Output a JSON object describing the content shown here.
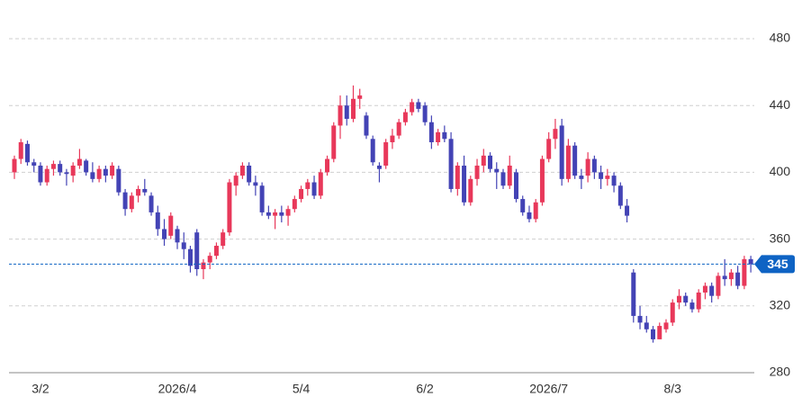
{
  "chart_data": {
    "type": "candlestick",
    "categories": [
      null,
      null,
      null,
      null,
      "3/2",
      null,
      null,
      null,
      null,
      null,
      null,
      null,
      null,
      null,
      null,
      null,
      null,
      null,
      null,
      null,
      null,
      null,
      null,
      null,
      null,
      "2026/4",
      null,
      null,
      null,
      null,
      null,
      null,
      null,
      null,
      null,
      null,
      null,
      null,
      null,
      null,
      null,
      null,
      null,
      null,
      "5/4",
      null,
      null,
      null,
      null,
      null,
      null,
      null,
      null,
      null,
      null,
      null,
      null,
      null,
      null,
      null,
      null,
      null,
      null,
      "6/2",
      null,
      null,
      null,
      null,
      null,
      null,
      null,
      null,
      null,
      null,
      null,
      null,
      null,
      null,
      null,
      null,
      null,
      null,
      "2026/7",
      null,
      null,
      null,
      null,
      null,
      null,
      null,
      null,
      null,
      null,
      null,
      null,
      null,
      null,
      null,
      null,
      null,
      null,
      "8/3",
      null,
      null,
      null,
      null,
      null,
      null,
      null,
      null,
      null,
      null,
      null,
      null
    ],
    "open": [
      400,
      408,
      417,
      406,
      404,
      394,
      402,
      405,
      400,
      398,
      404,
      407,
      400,
      396,
      402,
      398,
      402,
      388,
      378,
      386,
      390,
      386,
      376,
      366,
      362,
      366,
      358,
      354,
      364,
      342,
      346,
      350,
      356,
      364,
      392,
      398,
      404,
      394,
      392,
      376,
      374,
      376,
      374,
      378,
      384,
      390,
      394,
      386,
      400,
      408,
      428,
      440,
      432,
      444,
      434,
      420,
      404,
      404,
      418,
      422,
      430,
      436,
      442,
      440,
      430,
      418,
      424,
      420,
      390,
      404,
      382,
      396,
      404,
      410,
      402,
      400,
      392,
      400,
      384,
      376,
      372,
      382,
      408,
      420,
      428,
      396,
      416,
      398,
      398,
      408,
      400,
      396,
      398,
      392,
      380,
      340,
      314,
      310,
      306,
      300,
      306,
      310,
      322,
      326,
      322,
      318,
      328,
      332,
      326,
      338,
      336,
      340,
      332,
      348
    ],
    "high": [
      410,
      420,
      419,
      408,
      406,
      404,
      407,
      407,
      402,
      406,
      414,
      408,
      406,
      404,
      404,
      406,
      404,
      390,
      388,
      392,
      396,
      388,
      380,
      372,
      376,
      368,
      364,
      356,
      366,
      348,
      352,
      358,
      366,
      396,
      400,
      406,
      406,
      398,
      394,
      380,
      378,
      380,
      380,
      386,
      392,
      396,
      398,
      402,
      410,
      430,
      446,
      446,
      452,
      450,
      436,
      422,
      406,
      420,
      426,
      432,
      438,
      444,
      444,
      442,
      434,
      426,
      428,
      424,
      406,
      410,
      398,
      408,
      414,
      412,
      406,
      402,
      410,
      402,
      386,
      380,
      384,
      410,
      424,
      432,
      432,
      420,
      418,
      402,
      412,
      410,
      404,
      402,
      400,
      394,
      384,
      342,
      320,
      314,
      308,
      310,
      312,
      324,
      330,
      328,
      324,
      330,
      334,
      334,
      340,
      348,
      342,
      344,
      350,
      350
    ],
    "low": [
      396,
      405,
      404,
      400,
      392,
      392,
      398,
      398,
      392,
      394,
      402,
      398,
      394,
      394,
      394,
      396,
      386,
      374,
      376,
      382,
      386,
      374,
      362,
      356,
      360,
      354,
      348,
      340,
      338,
      336,
      342,
      348,
      354,
      362,
      386,
      396,
      392,
      386,
      374,
      372,
      366,
      370,
      368,
      376,
      382,
      386,
      384,
      384,
      398,
      406,
      420,
      428,
      430,
      438,
      420,
      404,
      394,
      402,
      414,
      420,
      428,
      434,
      436,
      428,
      414,
      416,
      418,
      388,
      386,
      380,
      380,
      392,
      400,
      400,
      390,
      390,
      390,
      382,
      374,
      370,
      370,
      380,
      406,
      414,
      392,
      394,
      396,
      390,
      394,
      396,
      390,
      392,
      388,
      378,
      370,
      310,
      306,
      304,
      298,
      300,
      304,
      308,
      318,
      320,
      316,
      316,
      324,
      322,
      324,
      332,
      332,
      330,
      330,
      340
    ],
    "close": [
      408,
      418,
      406,
      404,
      394,
      402,
      405,
      400,
      399,
      404,
      408,
      400,
      396,
      402,
      398,
      404,
      388,
      378,
      386,
      390,
      388,
      376,
      366,
      360,
      374,
      358,
      354,
      344,
      342,
      346,
      350,
      356,
      364,
      394,
      398,
      404,
      394,
      392,
      376,
      374,
      376,
      374,
      378,
      384,
      390,
      394,
      386,
      400,
      408,
      428,
      440,
      432,
      444,
      446,
      422,
      406,
      402,
      418,
      422,
      430,
      436,
      442,
      438,
      430,
      418,
      424,
      420,
      390,
      404,
      382,
      396,
      404,
      410,
      402,
      400,
      392,
      404,
      384,
      376,
      372,
      382,
      408,
      420,
      426,
      396,
      416,
      398,
      396,
      408,
      400,
      396,
      398,
      392,
      380,
      374,
      314,
      310,
      306,
      300,
      308,
      310,
      322,
      326,
      322,
      318,
      328,
      332,
      326,
      338,
      336,
      340,
      332,
      348,
      345
    ],
    "up_color": "#e8385a",
    "down_color": "#4343b5",
    "current_price": 345,
    "current_price_color": "#0e63c4",
    "ylim": [
      280,
      480
    ],
    "yticks": [
      280,
      320,
      360,
      400,
      440,
      480
    ],
    "grid": true
  }
}
